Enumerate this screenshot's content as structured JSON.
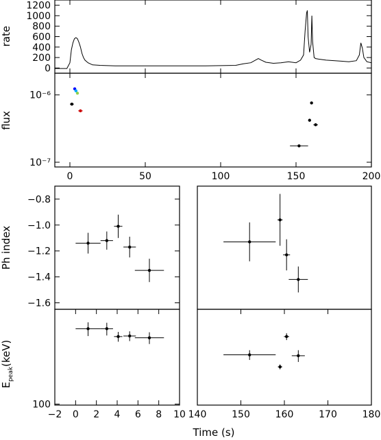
{
  "figure_xlabel": "Time (s)",
  "chart_data": [
    {
      "panel": "rate",
      "type": "line",
      "ylabel": "rate",
      "xlim": [
        -10,
        200
      ],
      "ylim": [
        -100,
        1300
      ],
      "x_ticks": [
        0,
        50,
        100,
        150,
        200
      ],
      "y_ticks": [
        0,
        200,
        400,
        600,
        800,
        1000,
        1200
      ],
      "y_tick_labels": [
        "0",
        "200",
        "400",
        "600",
        "800",
        "1000",
        "1200"
      ],
      "series": [
        {
          "points": [
            [
              -10,
              -10
            ],
            [
              -2,
              -10
            ],
            [
              0,
              100
            ],
            [
              1,
              350
            ],
            [
              2,
              480
            ],
            [
              3,
              560
            ],
            [
              4,
              580
            ],
            [
              5,
              560
            ],
            [
              6,
              490
            ],
            [
              7,
              400
            ],
            [
              8,
              280
            ],
            [
              9,
              200
            ],
            [
              10,
              150
            ],
            [
              12,
              100
            ],
            [
              15,
              60
            ],
            [
              20,
              50
            ],
            [
              30,
              40
            ],
            [
              50,
              40
            ],
            [
              70,
              40
            ],
            [
              90,
              40
            ],
            [
              100,
              45
            ],
            [
              110,
              50
            ],
            [
              115,
              80
            ],
            [
              120,
              100
            ],
            [
              125,
              180
            ],
            [
              127,
              150
            ],
            [
              130,
              110
            ],
            [
              135,
              90
            ],
            [
              140,
              100
            ],
            [
              145,
              120
            ],
            [
              150,
              100
            ],
            [
              153,
              150
            ],
            [
              155,
              250
            ],
            [
              156,
              700
            ],
            [
              157,
              1050
            ],
            [
              157.5,
              1100
            ],
            [
              158,
              600
            ],
            [
              159,
              300
            ],
            [
              160,
              450
            ],
            [
              160.5,
              1000
            ],
            [
              161,
              500
            ],
            [
              162,
              200
            ],
            [
              163,
              180
            ],
            [
              165,
              170
            ],
            [
              170,
              150
            ],
            [
              180,
              130
            ],
            [
              185,
              120
            ],
            [
              190,
              140
            ],
            [
              192,
              250
            ],
            [
              193,
              480
            ],
            [
              194,
              380
            ],
            [
              195,
              200
            ],
            [
              197,
              120
            ],
            [
              200,
              100
            ]
          ]
        }
      ]
    },
    {
      "panel": "flux",
      "type": "scatter",
      "ylabel": "flux",
      "xlim": [
        -10,
        200
      ],
      "ylim": [
        8.5e-08,
        2.1e-06
      ],
      "log_y": true,
      "x_ticks": [
        0,
        50,
        100,
        150,
        200
      ],
      "x_tick_labels": [
        "0",
        "50",
        "100",
        "150",
        "200"
      ],
      "y_ticks": [
        1e-06,
        1e-07
      ],
      "y_tick_labels": [
        "10⁻⁶",
        "10⁻⁷"
      ],
      "colors": {
        "black": "#000000",
        "red": "#cc0000",
        "blue": "#0000ff",
        "cyan": "#00aaff",
        "green": "#8fd14f"
      },
      "points": [
        {
          "x": 1.3,
          "y": 7.3e-07,
          "xerr": 1.3,
          "color": "#000000"
        },
        {
          "x": 3.2,
          "y": 1.23e-06,
          "xerr": 0,
          "color": "#0000ff"
        },
        {
          "x": 4.0,
          "y": 1.15e-06,
          "xerr": 0,
          "color": "#00aaff"
        },
        {
          "x": 5.0,
          "y": 1.06e-06,
          "xerr": 0,
          "color": "#8fd14f"
        },
        {
          "x": 7.0,
          "y": 5.8e-07,
          "xerr": 1.5,
          "color": "#cc0000"
        },
        {
          "x": 152,
          "y": 1.75e-07,
          "xerr": 6,
          "color": "#000000"
        },
        {
          "x": 159,
          "y": 4.2e-07,
          "xerr": 0.5,
          "color": "#000000"
        },
        {
          "x": 160.3,
          "y": 7.6e-07,
          "xerr": 0.5,
          "color": "#000000"
        },
        {
          "x": 163,
          "y": 3.6e-07,
          "xerr": 1.5,
          "color": "#000000"
        }
      ]
    },
    {
      "panel": "phindex-left",
      "type": "scatter",
      "ylabel": "Ph index",
      "xlim": [
        -2,
        10
      ],
      "ylim": [
        -1.65,
        -0.7
      ],
      "y_ticks": [
        -0.8,
        -1.0,
        -1.2,
        -1.4,
        -1.6
      ],
      "y_tick_labels": [
        "−0.8",
        "−1.0",
        "−1.2",
        "−1.4",
        "−1.6"
      ],
      "points": [
        {
          "x": 1.2,
          "y": -1.14,
          "xerr": 1.2,
          "yerr": 0.08
        },
        {
          "x": 3.0,
          "y": -1.12,
          "xerr": 0.6,
          "yerr": 0.07
        },
        {
          "x": 4.1,
          "y": -1.01,
          "xerr": 0.4,
          "yerr": 0.09
        },
        {
          "x": 5.2,
          "y": -1.17,
          "xerr": 0.6,
          "yerr": 0.08
        },
        {
          "x": 7.1,
          "y": -1.35,
          "xerr": 1.4,
          "yerr": 0.09
        }
      ]
    },
    {
      "panel": "phindex-right",
      "type": "scatter",
      "xlim": [
        140,
        180
      ],
      "ylim": [
        -1.65,
        -0.7
      ],
      "points": [
        {
          "x": 152,
          "y": -1.13,
          "xerr": 6,
          "yerr": 0.15
        },
        {
          "x": 159,
          "y": -0.96,
          "xerr": 0.6,
          "yerr": 0.2
        },
        {
          "x": 160.5,
          "y": -1.23,
          "xerr": 0.8,
          "yerr": 0.12
        },
        {
          "x": 163.2,
          "y": -1.42,
          "xerr": 2.2,
          "yerr": 0.1
        }
      ]
    },
    {
      "panel": "epeak-left",
      "type": "scatter",
      "ylabel": "E_peak(keV)",
      "xlim": [
        -2,
        10
      ],
      "ylim": [
        98,
        700
      ],
      "log_y": true,
      "x_ticks": [
        -2,
        0,
        2,
        4,
        6,
        8,
        10
      ],
      "x_tick_labels": [
        "−2",
        "0",
        "2",
        "4",
        "6",
        "8",
        "10"
      ],
      "y_ticks": [
        100
      ],
      "y_tick_labels": [
        "100"
      ],
      "points": [
        {
          "x": 1.2,
          "y": 470,
          "xerr": 1.2,
          "yerr_frac": 0.14
        },
        {
          "x": 3.0,
          "y": 470,
          "xerr": 0.6,
          "yerr_frac": 0.13
        },
        {
          "x": 4.1,
          "y": 400,
          "xerr": 0.4,
          "yerr_frac": 0.1
        },
        {
          "x": 5.2,
          "y": 405,
          "xerr": 0.6,
          "yerr_frac": 0.1
        },
        {
          "x": 7.1,
          "y": 390,
          "xerr": 1.4,
          "yerr_frac": 0.12
        }
      ]
    },
    {
      "panel": "epeak-right",
      "type": "scatter",
      "xlim": [
        140,
        180
      ],
      "ylim": [
        98,
        700
      ],
      "log_y": true,
      "x_ticks": [
        140,
        150,
        160,
        170,
        180
      ],
      "x_tick_labels": [
        "140",
        "150",
        "160",
        "170",
        "180"
      ],
      "points": [
        {
          "x": 152,
          "y": 275,
          "xerr": 6,
          "yerr_frac": 0.1
        },
        {
          "x": 159,
          "y": 215,
          "xerr": 0.5,
          "yerr_frac": 0.05
        },
        {
          "x": 160.5,
          "y": 400,
          "xerr": 0.6,
          "yerr_frac": 0.07
        },
        {
          "x": 163.2,
          "y": 270,
          "xerr": 1.5,
          "yerr_frac": 0.12
        }
      ]
    }
  ]
}
